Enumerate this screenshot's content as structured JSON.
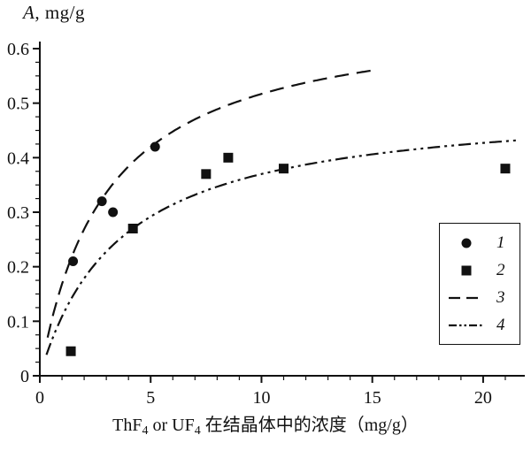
{
  "title": {
    "italic": "A",
    "rest": ", mg/g"
  },
  "xlabel": {
    "parts": [
      {
        "text": "ThF"
      },
      {
        "text": "4",
        "sub": true
      },
      {
        "text": " or UF"
      },
      {
        "text": "4",
        "sub": true
      },
      {
        "text": " 在结晶体中的浓度（mg/g）"
      }
    ]
  },
  "colors": {
    "fg": "#111111",
    "bg": "#ffffff"
  },
  "chart_data": {
    "type": "scatter",
    "title": "A, mg/g",
    "xlabel": "ThF4 or UF4 在结晶体中的浓度（mg/g）",
    "ylabel": "A, mg/g",
    "xlim": [
      0,
      21.8
    ],
    "ylim": [
      0,
      0.6
    ],
    "grid": false,
    "x_ticks": {
      "major": [
        0,
        5,
        10,
        15,
        20
      ],
      "labels": [
        "0",
        "5",
        "10",
        "15",
        "20"
      ],
      "minor_step": 1
    },
    "y_ticks": {
      "major": [
        0,
        0.1,
        0.2,
        0.3,
        0.4,
        0.5,
        0.6
      ],
      "labels": [
        "0",
        "0.1",
        "0.2",
        "0.3",
        "0.4",
        "0.5",
        "0.6"
      ],
      "minor_step": 0.025
    },
    "series": [
      {
        "name": "1",
        "type": "scatter",
        "marker": "circle",
        "x": [
          1.5,
          2.8,
          3.3,
          5.2
        ],
        "y": [
          0.21,
          0.32,
          0.3,
          0.42
        ]
      },
      {
        "name": "2",
        "type": "scatter",
        "marker": "square",
        "x": [
          1.4,
          4.2,
          7.5,
          8.5,
          11.0,
          21.0
        ],
        "y": [
          0.045,
          0.27,
          0.37,
          0.4,
          0.38,
          0.38
        ]
      },
      {
        "name": "3",
        "type": "curve",
        "dash": "long-dash",
        "model": "langmuir",
        "Amax": 0.672,
        "K": 3.0,
        "x_range": [
          0.35,
          15.2
        ],
        "fit_points_x": [
          1.5,
          5,
          15
        ],
        "fit_points_y": [
          0.224,
          0.42,
          0.56
        ]
      },
      {
        "name": "4",
        "type": "curve",
        "dash": "dash-dot-dot",
        "model": "langmuir",
        "Amax": 0.505,
        "K": 3.65,
        "x_range": [
          0.3,
          21.6
        ],
        "fit_points_x": [
          4.2,
          11,
          21
        ],
        "fit_points_y": [
          0.27,
          0.379,
          0.43
        ]
      }
    ],
    "legend": {
      "position": "right",
      "entries": [
        {
          "label": "1",
          "marker": "circle"
        },
        {
          "label": "2",
          "marker": "square"
        },
        {
          "label": "3",
          "marker": "long-dash"
        },
        {
          "label": "4",
          "marker": "dash-dot-dot"
        }
      ]
    }
  }
}
